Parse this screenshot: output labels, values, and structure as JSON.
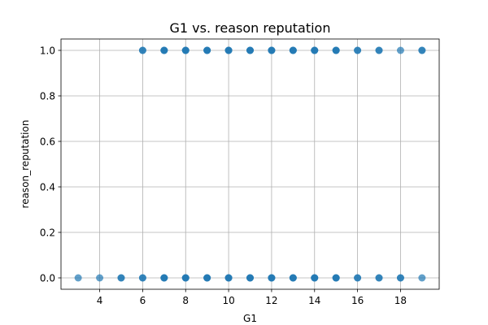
{
  "chart_data": {
    "type": "scatter",
    "title": "G1 vs. reason reputation",
    "xlabel": "G1",
    "ylabel": "reason_reputation",
    "xlim": [
      2.2,
      19.8
    ],
    "ylim": [
      -0.05,
      1.05
    ],
    "xticks": [
      4,
      6,
      8,
      10,
      12,
      14,
      16,
      18
    ],
    "yticks": [
      0.0,
      0.2,
      0.4,
      0.6,
      0.8,
      1.0
    ],
    "ytick_labels": [
      "0.0",
      "0.2",
      "0.4",
      "0.6",
      "0.8",
      "1.0"
    ],
    "grid": true,
    "legend": "none",
    "series": [
      {
        "color": "#1f77b4",
        "opacity": 0.7,
        "points": [
          {
            "x": 3,
            "y": 0
          },
          {
            "x": 4,
            "y": 0
          },
          {
            "x": 5,
            "y": 0
          },
          {
            "x": 5,
            "y": 0
          },
          {
            "x": 6,
            "y": 0
          },
          {
            "x": 6,
            "y": 0
          },
          {
            "x": 7,
            "y": 0
          },
          {
            "x": 7,
            "y": 0
          },
          {
            "x": 7,
            "y": 0
          },
          {
            "x": 8,
            "y": 0
          },
          {
            "x": 8,
            "y": 0
          },
          {
            "x": 8,
            "y": 0
          },
          {
            "x": 9,
            "y": 0
          },
          {
            "x": 9,
            "y": 0
          },
          {
            "x": 9,
            "y": 0
          },
          {
            "x": 10,
            "y": 0
          },
          {
            "x": 10,
            "y": 0
          },
          {
            "x": 10,
            "y": 0
          },
          {
            "x": 11,
            "y": 0
          },
          {
            "x": 11,
            "y": 0
          },
          {
            "x": 11,
            "y": 0
          },
          {
            "x": 12,
            "y": 0
          },
          {
            "x": 12,
            "y": 0
          },
          {
            "x": 12,
            "y": 0
          },
          {
            "x": 13,
            "y": 0
          },
          {
            "x": 13,
            "y": 0
          },
          {
            "x": 13,
            "y": 0
          },
          {
            "x": 14,
            "y": 0
          },
          {
            "x": 14,
            "y": 0
          },
          {
            "x": 14,
            "y": 0
          },
          {
            "x": 15,
            "y": 0
          },
          {
            "x": 15,
            "y": 0
          },
          {
            "x": 15,
            "y": 0
          },
          {
            "x": 16,
            "y": 0
          },
          {
            "x": 16,
            "y": 0
          },
          {
            "x": 17,
            "y": 0
          },
          {
            "x": 17,
            "y": 0
          },
          {
            "x": 18,
            "y": 0
          },
          {
            "x": 18,
            "y": 0
          },
          {
            "x": 19,
            "y": 0
          },
          {
            "x": 6,
            "y": 1
          },
          {
            "x": 6,
            "y": 1
          },
          {
            "x": 7,
            "y": 1
          },
          {
            "x": 7,
            "y": 1
          },
          {
            "x": 7,
            "y": 1
          },
          {
            "x": 8,
            "y": 1
          },
          {
            "x": 8,
            "y": 1
          },
          {
            "x": 8,
            "y": 1
          },
          {
            "x": 9,
            "y": 1
          },
          {
            "x": 9,
            "y": 1
          },
          {
            "x": 9,
            "y": 1
          },
          {
            "x": 10,
            "y": 1
          },
          {
            "x": 10,
            "y": 1
          },
          {
            "x": 10,
            "y": 1
          },
          {
            "x": 11,
            "y": 1
          },
          {
            "x": 11,
            "y": 1
          },
          {
            "x": 11,
            "y": 1
          },
          {
            "x": 12,
            "y": 1
          },
          {
            "x": 12,
            "y": 1
          },
          {
            "x": 12,
            "y": 1
          },
          {
            "x": 13,
            "y": 1
          },
          {
            "x": 13,
            "y": 1
          },
          {
            "x": 13,
            "y": 1
          },
          {
            "x": 14,
            "y": 1
          },
          {
            "x": 14,
            "y": 1
          },
          {
            "x": 14,
            "y": 1
          },
          {
            "x": 15,
            "y": 1
          },
          {
            "x": 15,
            "y": 1
          },
          {
            "x": 15,
            "y": 1
          },
          {
            "x": 16,
            "y": 1
          },
          {
            "x": 16,
            "y": 1
          },
          {
            "x": 17,
            "y": 1
          },
          {
            "x": 17,
            "y": 1
          },
          {
            "x": 18,
            "y": 1
          },
          {
            "x": 19,
            "y": 1
          },
          {
            "x": 19,
            "y": 1
          }
        ]
      }
    ]
  }
}
